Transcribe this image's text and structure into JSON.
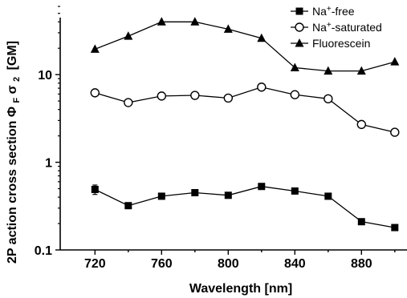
{
  "chart_data": {
    "type": "line",
    "title": "",
    "xlabel": "Wavelength [nm]",
    "ylabel": "2P action cross section",
    "ylabel_symbol": "Φ",
    "ylabel_symbol_sub": "F",
    "ylabel_sigma": "σ",
    "ylabel_sigma_sub": "2",
    "ylabel_unit": "[GM]",
    "xlim": [
      708,
      906
    ],
    "ylim": [
      0.1,
      60
    ],
    "yscale": "log",
    "x_ticks": [
      "720",
      "760",
      "800",
      "840",
      "880"
    ],
    "x_tick_values": [
      720,
      760,
      800,
      840,
      880
    ],
    "y_ticks": [
      "0.1",
      "1",
      "10"
    ],
    "y_tick_values": [
      0.1,
      1,
      10
    ],
    "legend_position": "top-right",
    "x": [
      720,
      740,
      760,
      780,
      800,
      820,
      840,
      860,
      880,
      900
    ],
    "series": [
      {
        "name": "Na+-free",
        "name_prefix": "Na",
        "name_sup": "+",
        "name_suffix": "-free",
        "marker": "filled-square",
        "values": [
          0.49,
          0.32,
          0.41,
          0.45,
          0.42,
          0.53,
          0.47,
          0.41,
          0.21,
          0.18
        ],
        "errors": [
          0.06,
          0,
          0,
          0,
          0,
          0,
          0,
          0,
          0,
          0
        ]
      },
      {
        "name": "Na+-saturated",
        "name_prefix": "Na",
        "name_sup": "+",
        "name_suffix": "-saturated",
        "marker": "open-circle",
        "values": [
          6.2,
          4.8,
          5.7,
          5.8,
          5.4,
          7.2,
          5.9,
          5.3,
          2.7,
          2.2
        ]
      },
      {
        "name": "Fluorescein",
        "name_prefix": "Fluorescein",
        "name_sup": "",
        "name_suffix": "",
        "marker": "filled-triangle",
        "values": [
          19.5,
          27.5,
          40,
          40,
          33,
          26,
          12,
          11,
          11,
          14
        ]
      }
    ],
    "colors": {
      "line": "#000000",
      "open_fill": "#ffffff"
    }
  }
}
